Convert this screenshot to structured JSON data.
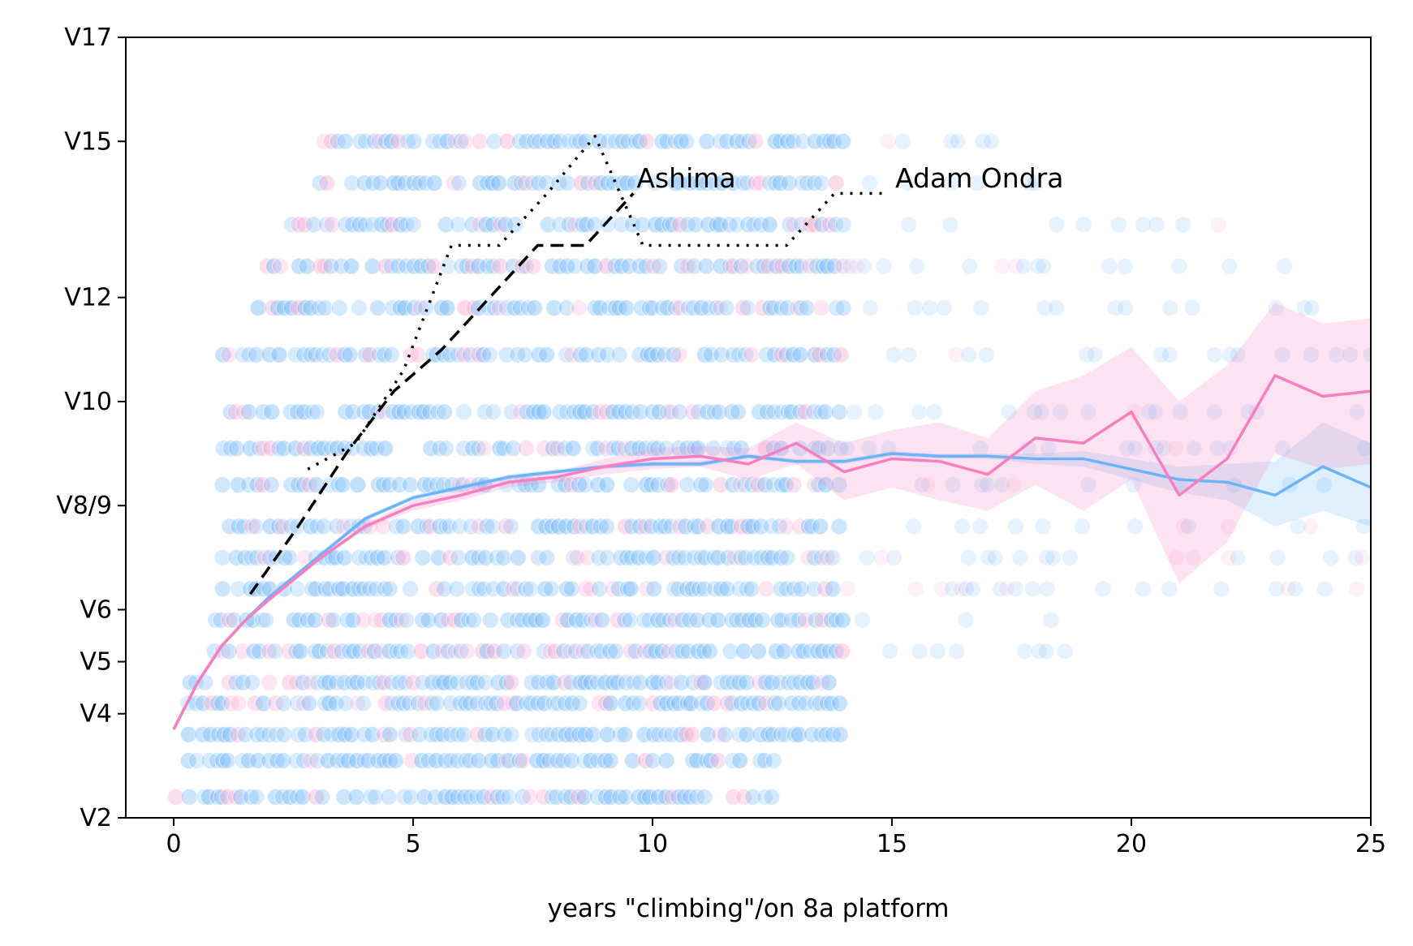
{
  "chart_data": {
    "type": "line",
    "title": "",
    "xlabel": "years \"climbing\"/on 8a platform",
    "ylabel": "",
    "xlim": [
      -1,
      25
    ],
    "ylim": [
      2,
      17
    ],
    "x_ticks": [
      0,
      5,
      10,
      15,
      20,
      25
    ],
    "y_ticks": [
      {
        "value": 2,
        "label": "V2"
      },
      {
        "value": 4,
        "label": "V4"
      },
      {
        "value": 5,
        "label": "V5"
      },
      {
        "value": 6,
        "label": "V6"
      },
      {
        "value": 8,
        "label": "V8/9"
      },
      {
        "value": 10,
        "label": "V10"
      },
      {
        "value": 12,
        "label": "V12"
      },
      {
        "value": 15,
        "label": "V15"
      },
      {
        "value": 17,
        "label": "V17"
      }
    ],
    "grid": false,
    "colors": {
      "blue": "#6cb4f7",
      "pink": "#f77fbf",
      "blue_points": "#74b8f7",
      "pink_points": "#f7a8cf",
      "annotation": "#000000"
    },
    "scatter": {
      "description_levels": [
        2.4,
        3.1,
        3.6,
        4.2,
        4.6,
        5.2,
        5.8,
        6.4,
        7.0,
        7.6,
        8.4,
        9.1,
        9.8,
        10.9,
        11.8,
        12.6,
        13.4,
        14.2,
        15.0
      ],
      "point_alpha": 0.25
    },
    "series": [
      {
        "kind": "mean-line",
        "color": "#6cb4f7",
        "x": [
          0,
          0.5,
          1,
          1.5,
          2,
          3,
          4,
          5,
          6,
          7,
          8,
          9,
          10,
          11,
          12,
          13,
          14,
          15,
          16,
          17,
          18,
          19,
          20,
          21,
          22,
          23,
          24,
          25
        ],
        "y": [
          3.7,
          4.6,
          5.3,
          5.8,
          6.25,
          7.0,
          7.75,
          8.15,
          8.35,
          8.55,
          8.65,
          8.75,
          8.8,
          8.8,
          8.95,
          8.85,
          8.85,
          9.0,
          8.95,
          8.95,
          8.9,
          8.9,
          8.7,
          8.5,
          8.45,
          8.2,
          8.75,
          8.35
        ],
        "band_low": [
          3.7,
          4.6,
          5.3,
          5.8,
          6.25,
          6.95,
          7.7,
          8.1,
          8.3,
          8.5,
          8.6,
          8.7,
          8.75,
          8.75,
          8.9,
          8.8,
          8.8,
          8.95,
          8.9,
          8.9,
          8.8,
          8.75,
          8.5,
          8.25,
          8.1,
          7.6,
          7.9,
          7.6
        ],
        "band_high": [
          3.7,
          4.6,
          5.3,
          5.8,
          6.25,
          7.05,
          7.8,
          8.2,
          8.4,
          8.6,
          8.7,
          8.8,
          8.85,
          8.85,
          9.0,
          8.9,
          8.9,
          9.05,
          9.0,
          9.0,
          9.0,
          9.05,
          8.9,
          8.75,
          8.8,
          8.85,
          9.6,
          9.2
        ]
      },
      {
        "kind": "mean-line",
        "color": "#f77fbf",
        "x": [
          0,
          0.5,
          1,
          1.5,
          2,
          3,
          4,
          5,
          6,
          7,
          8,
          9,
          10,
          11,
          12,
          13,
          14,
          15,
          16,
          17,
          18,
          19,
          20,
          21,
          22,
          23,
          24,
          25
        ],
        "y": [
          3.7,
          4.6,
          5.3,
          5.8,
          6.2,
          6.95,
          7.6,
          8.0,
          8.2,
          8.45,
          8.55,
          8.75,
          8.9,
          8.95,
          8.8,
          9.2,
          8.65,
          8.9,
          8.85,
          8.6,
          9.3,
          9.2,
          9.8,
          8.2,
          8.9,
          10.5,
          10.1,
          10.2
        ],
        "band_low": [
          3.7,
          4.6,
          5.3,
          5.8,
          6.15,
          6.9,
          7.55,
          7.9,
          8.1,
          8.35,
          8.45,
          8.6,
          8.7,
          8.75,
          8.5,
          8.8,
          8.1,
          8.35,
          8.1,
          7.9,
          8.4,
          7.9,
          8.5,
          6.5,
          7.3,
          9.0,
          8.7,
          8.8
        ],
        "band_high": [
          3.7,
          4.6,
          5.3,
          5.8,
          6.25,
          7.0,
          7.65,
          8.1,
          8.3,
          8.55,
          8.65,
          8.9,
          9.1,
          9.15,
          9.1,
          9.6,
          9.2,
          9.45,
          9.6,
          9.3,
          10.2,
          10.5,
          11.05,
          10.0,
          10.7,
          11.9,
          11.5,
          11.6
        ]
      },
      {
        "kind": "athlete",
        "name": "Ashima",
        "style": "dashed",
        "x": [
          1.6,
          2.6,
          3.6,
          4.6,
          5.6,
          6.6,
          7.6,
          8.6,
          9.6
        ],
        "y": [
          6.3,
          7.6,
          9.0,
          10.2,
          11.0,
          12.0,
          13.0,
          13.0,
          14.0
        ]
      },
      {
        "kind": "athlete",
        "name": "Adam Ondra",
        "style": "dotted",
        "x": [
          2.8,
          3.8,
          4.8,
          5.8,
          6.8,
          7.8,
          8.8,
          9.8,
          10.8,
          11.8,
          12.8,
          13.8,
          14.8
        ],
        "y": [
          8.7,
          9.2,
          10.6,
          13.0,
          13.0,
          14.0,
          15.1,
          13.0,
          13.0,
          13.0,
          13.0,
          14.0,
          14.0
        ]
      }
    ],
    "annotations": [
      {
        "text": "Ashima",
        "x": 9.6,
        "y": 14.3
      },
      {
        "text": "Adam Ondra",
        "x": 15.0,
        "y": 14.3
      }
    ]
  }
}
